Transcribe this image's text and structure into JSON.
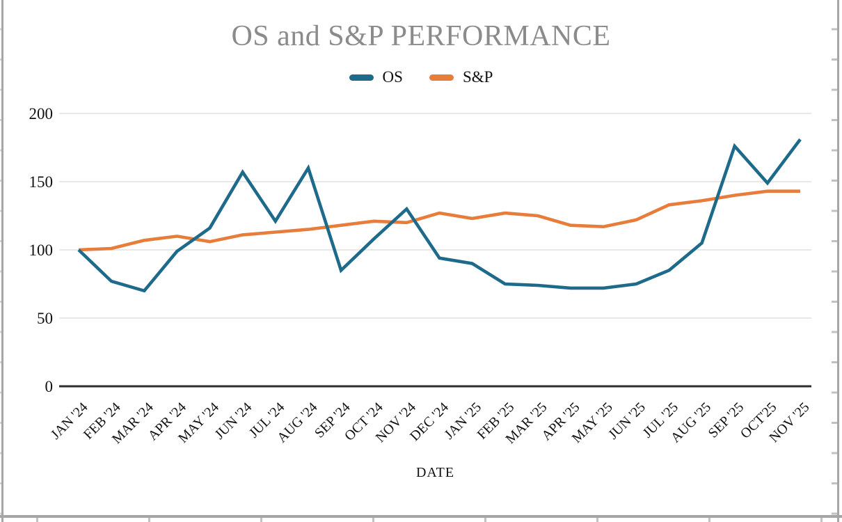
{
  "chart_data": {
    "type": "line",
    "title": "OS and S&P PERFORMANCE",
    "xlabel": "DATE",
    "ylabel": "",
    "categories": [
      "JAN '24",
      "FEB '24",
      "MAR '24",
      "APR '24",
      "MAY '24",
      "JUN '24",
      "JUL '24",
      "AUG '24",
      "SEP '24",
      "OCT '24",
      "NOV '24",
      "DEC '24",
      "JAN '25",
      "FEB '25",
      "MAR '25",
      "APR '25",
      "MAY '25",
      "JUN '25",
      "JUL '25",
      "AUG '25",
      "SEP '25",
      "OCT'25",
      "NOV '25"
    ],
    "series": [
      {
        "name": "OS",
        "color": "#1e6a8a",
        "values": [
          100,
          77,
          70,
          99,
          116,
          157,
          121,
          160,
          85,
          108,
          130,
          94,
          90,
          75,
          74,
          72,
          72,
          75,
          85,
          105,
          176,
          149,
          181
        ]
      },
      {
        "name": "S&P",
        "color": "#e87c3a",
        "values": [
          100,
          101,
          107,
          110,
          106,
          111,
          113,
          115,
          118,
          121,
          120,
          127,
          123,
          127,
          125,
          118,
          117,
          122,
          133,
          136,
          140,
          143,
          143
        ]
      }
    ],
    "y_ticks": [
      0,
      50,
      100,
      150,
      200
    ],
    "ylim": [
      0,
      200
    ],
    "grid": true,
    "legend_position": "top",
    "grid_color": "#d9d9d9",
    "axis_color": "#2e2e2e",
    "title_color": "#8b8b8b"
  }
}
